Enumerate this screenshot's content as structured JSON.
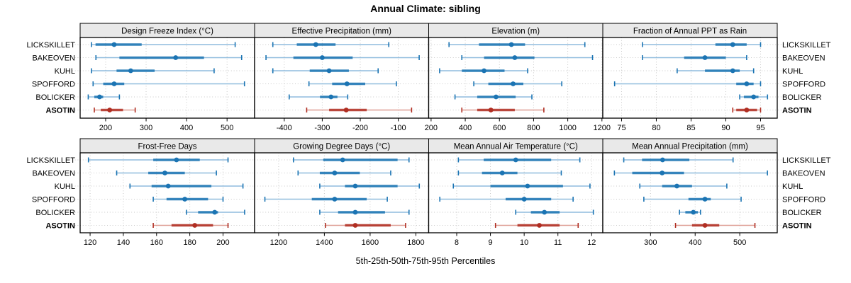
{
  "title": "Annual Climate: sibling",
  "xlabel": "5th-25th-50th-75th-95th Percentiles",
  "sites": [
    "LICKSKILLET",
    "BAKEOVEN",
    "KUHL",
    "SPOFFORD",
    "BOLICKER",
    "ASOTIN"
  ],
  "highlight_site": "ASOTIN",
  "colors": {
    "series": "#1B74B3",
    "series_light": "#8FBCDD",
    "highlight": "#B02E22",
    "highlight_light": "#DE9C93",
    "grid": "#C8C8C8",
    "strip_bg": "#E9E9E9",
    "border": "#000000",
    "text": "#000000"
  },
  "chart_data": [
    {
      "type": "dot-whisker",
      "id": "design-freeze-index",
      "title": "Design Freeze Index (°C)",
      "ticks": [
        200,
        300,
        400,
        500
      ],
      "xlim": [
        137,
        568
      ],
      "percentiles": [
        5,
        25,
        50,
        75,
        95
      ],
      "series": [
        {
          "site": "LICKSKILLET",
          "values": [
            165,
            175,
            221,
            289,
            520
          ]
        },
        {
          "site": "BAKEOVEN",
          "values": [
            176,
            234,
            373,
            443,
            536
          ]
        },
        {
          "site": "KUHL",
          "values": [
            165,
            227,
            262,
            321,
            468
          ]
        },
        {
          "site": "SPOFFORD",
          "values": [
            169,
            194,
            221,
            246,
            543
          ]
        },
        {
          "site": "BOLICKER",
          "values": [
            157,
            172,
            185,
            194,
            234
          ]
        },
        {
          "site": "ASOTIN",
          "values": [
            172,
            188,
            210,
            243,
            273
          ]
        }
      ]
    },
    {
      "type": "dot-whisker",
      "id": "effective-precipitation",
      "title": "Effective Precipitation (mm)",
      "ticks": [
        -400,
        -300,
        -200,
        -100
      ],
      "xlim": [
        -478,
        -20
      ],
      "percentiles": [
        5,
        25,
        50,
        75,
        95
      ],
      "series": [
        {
          "site": "LICKSKILLET",
          "values": [
            -430,
            -367,
            -317,
            -265,
            -125
          ]
        },
        {
          "site": "BAKEOVEN",
          "values": [
            -448,
            -376,
            -300,
            -220,
            -45
          ]
        },
        {
          "site": "KUHL",
          "values": [
            -430,
            -333,
            -282,
            -230,
            -153
          ]
        },
        {
          "site": "SPOFFORD",
          "values": [
            -335,
            -274,
            -235,
            -187,
            -105
          ]
        },
        {
          "site": "BOLICKER",
          "values": [
            -387,
            -306,
            -277,
            -260,
            -233
          ]
        },
        {
          "site": "ASOTIN",
          "values": [
            -341,
            -282,
            -237,
            -183,
            -65
          ]
        }
      ]
    },
    {
      "type": "dot-whisker",
      "id": "elevation",
      "title": "Elevation (m)",
      "ticks": [
        200,
        400,
        600,
        800,
        1000,
        1200
      ],
      "xlim": [
        186,
        1205
      ],
      "percentiles": [
        5,
        25,
        50,
        75,
        95
      ],
      "series": [
        {
          "site": "LICKSKILLET",
          "values": [
            305,
            480,
            670,
            750,
            1100
          ]
        },
        {
          "site": "BAKEOVEN",
          "values": [
            380,
            510,
            690,
            805,
            1145
          ]
        },
        {
          "site": "KUHL",
          "values": [
            250,
            380,
            510,
            630,
            765
          ]
        },
        {
          "site": "SPOFFORD",
          "values": [
            450,
            535,
            680,
            740,
            965
          ]
        },
        {
          "site": "BOLICKER",
          "values": [
            340,
            470,
            580,
            695,
            790
          ]
        },
        {
          "site": "ASOTIN",
          "values": [
            380,
            470,
            550,
            690,
            860
          ]
        }
      ]
    },
    {
      "type": "dot-whisker",
      "id": "fraction-annual-ppt-rain",
      "title": "Fraction of Annual PPT as Rain",
      "ticks": [
        75,
        80,
        85,
        90,
        95
      ],
      "xlim": [
        72.3,
        97.4
      ],
      "percentiles": [
        5,
        25,
        50,
        75,
        95
      ],
      "series": [
        {
          "site": "LICKSKILLET",
          "values": [
            78,
            88.5,
            91,
            93,
            95
          ]
        },
        {
          "site": "BAKEOVEN",
          "values": [
            78,
            84,
            87,
            90,
            93
          ]
        },
        {
          "site": "KUHL",
          "values": [
            83,
            87,
            91,
            92,
            94
          ]
        },
        {
          "site": "SPOFFORD",
          "values": [
            74,
            91.5,
            93,
            94,
            95
          ]
        },
        {
          "site": "BOLICKER",
          "values": [
            92,
            92.6,
            94,
            94.7,
            96
          ]
        },
        {
          "site": "ASOTIN",
          "values": [
            91,
            91.5,
            93,
            94.5,
            95
          ]
        }
      ]
    },
    {
      "type": "dot-whisker",
      "id": "frost-free-days",
      "title": "Frost-Free Days",
      "ticks": [
        120,
        140,
        160,
        180,
        200
      ],
      "xlim": [
        114,
        219
      ],
      "percentiles": [
        5,
        25,
        50,
        75,
        95
      ],
      "series": [
        {
          "site": "LICKSKILLET",
          "values": [
            119,
            158,
            172,
            186,
            203
          ]
        },
        {
          "site": "BAKEOVEN",
          "values": [
            136,
            155,
            165,
            177,
            196
          ]
        },
        {
          "site": "KUHL",
          "values": [
            144,
            157,
            167,
            193,
            212
          ]
        },
        {
          "site": "SPOFFORD",
          "values": [
            158,
            166,
            177,
            191,
            200
          ]
        },
        {
          "site": "BOLICKER",
          "values": [
            178,
            185,
            195,
            197,
            213
          ]
        },
        {
          "site": "ASOTIN",
          "values": [
            158,
            169,
            183,
            194,
            203
          ]
        }
      ]
    },
    {
      "type": "dot-whisker",
      "id": "growing-degree-days",
      "title": "Growing Degree Days (°C)",
      "ticks": [
        1200,
        1400,
        1600,
        1800
      ],
      "xlim": [
        1095,
        1856
      ],
      "percentiles": [
        5,
        25,
        50,
        75,
        95
      ],
      "series": [
        {
          "site": "LICKSKILLET",
          "values": [
            1265,
            1395,
            1480,
            1720,
            1770
          ]
        },
        {
          "site": "BAKEOVEN",
          "values": [
            1285,
            1380,
            1445,
            1555,
            1690
          ]
        },
        {
          "site": "KUHL",
          "values": [
            1380,
            1490,
            1535,
            1720,
            1815
          ]
        },
        {
          "site": "SPOFFORD",
          "values": [
            1140,
            1345,
            1445,
            1585,
            1675
          ]
        },
        {
          "site": "BOLICKER",
          "values": [
            1380,
            1460,
            1535,
            1665,
            1770
          ]
        },
        {
          "site": "ASOTIN",
          "values": [
            1405,
            1490,
            1535,
            1690,
            1755
          ]
        }
      ]
    },
    {
      "type": "dot-whisker",
      "id": "mean-annual-air-temperature",
      "title": "Mean Annual Air Temperature (°C)",
      "ticks": [
        8,
        9,
        10,
        11,
        12
      ],
      "xlim": [
        7.17,
        12.33
      ],
      "percentiles": [
        5,
        25,
        50,
        75,
        95
      ],
      "series": [
        {
          "site": "LICKSKILLET",
          "values": [
            8.05,
            8.8,
            9.75,
            10.8,
            11.65
          ]
        },
        {
          "site": "BAKEOVEN",
          "values": [
            8.05,
            8.75,
            9.35,
            9.8,
            11.1
          ]
        },
        {
          "site": "KUHL",
          "values": [
            7.9,
            9.0,
            10.1,
            11.15,
            11.95
          ]
        },
        {
          "site": "SPOFFORD",
          "values": [
            7.5,
            9.45,
            10.0,
            10.8,
            11.45
          ]
        },
        {
          "site": "BOLICKER",
          "values": [
            9.75,
            10.2,
            10.6,
            11.05,
            12.05
          ]
        },
        {
          "site": "ASOTIN",
          "values": [
            9.15,
            9.8,
            10.45,
            11.05,
            11.6
          ]
        }
      ]
    },
    {
      "type": "dot-whisker",
      "id": "mean-annual-precipitation",
      "title": "Mean Annual Precipitation (mm)",
      "ticks": [
        300,
        400,
        500
      ],
      "xlim": [
        193,
        584
      ],
      "percentiles": [
        5,
        25,
        50,
        75,
        95
      ],
      "series": [
        {
          "site": "LICKSKILLET",
          "values": [
            240,
            281,
            327,
            387,
            485
          ]
        },
        {
          "site": "BAKEOVEN",
          "values": [
            219,
            259,
            326,
            375,
            562
          ]
        },
        {
          "site": "KUHL",
          "values": [
            276,
            326,
            359,
            393,
            471
          ]
        },
        {
          "site": "SPOFFORD",
          "values": [
            285,
            385,
            422,
            435,
            503
          ]
        },
        {
          "site": "BOLICKER",
          "values": [
            365,
            378,
            396,
            406,
            412
          ]
        },
        {
          "site": "ASOTIN",
          "values": [
            356,
            393,
            422,
            454,
            534
          ]
        }
      ]
    }
  ]
}
